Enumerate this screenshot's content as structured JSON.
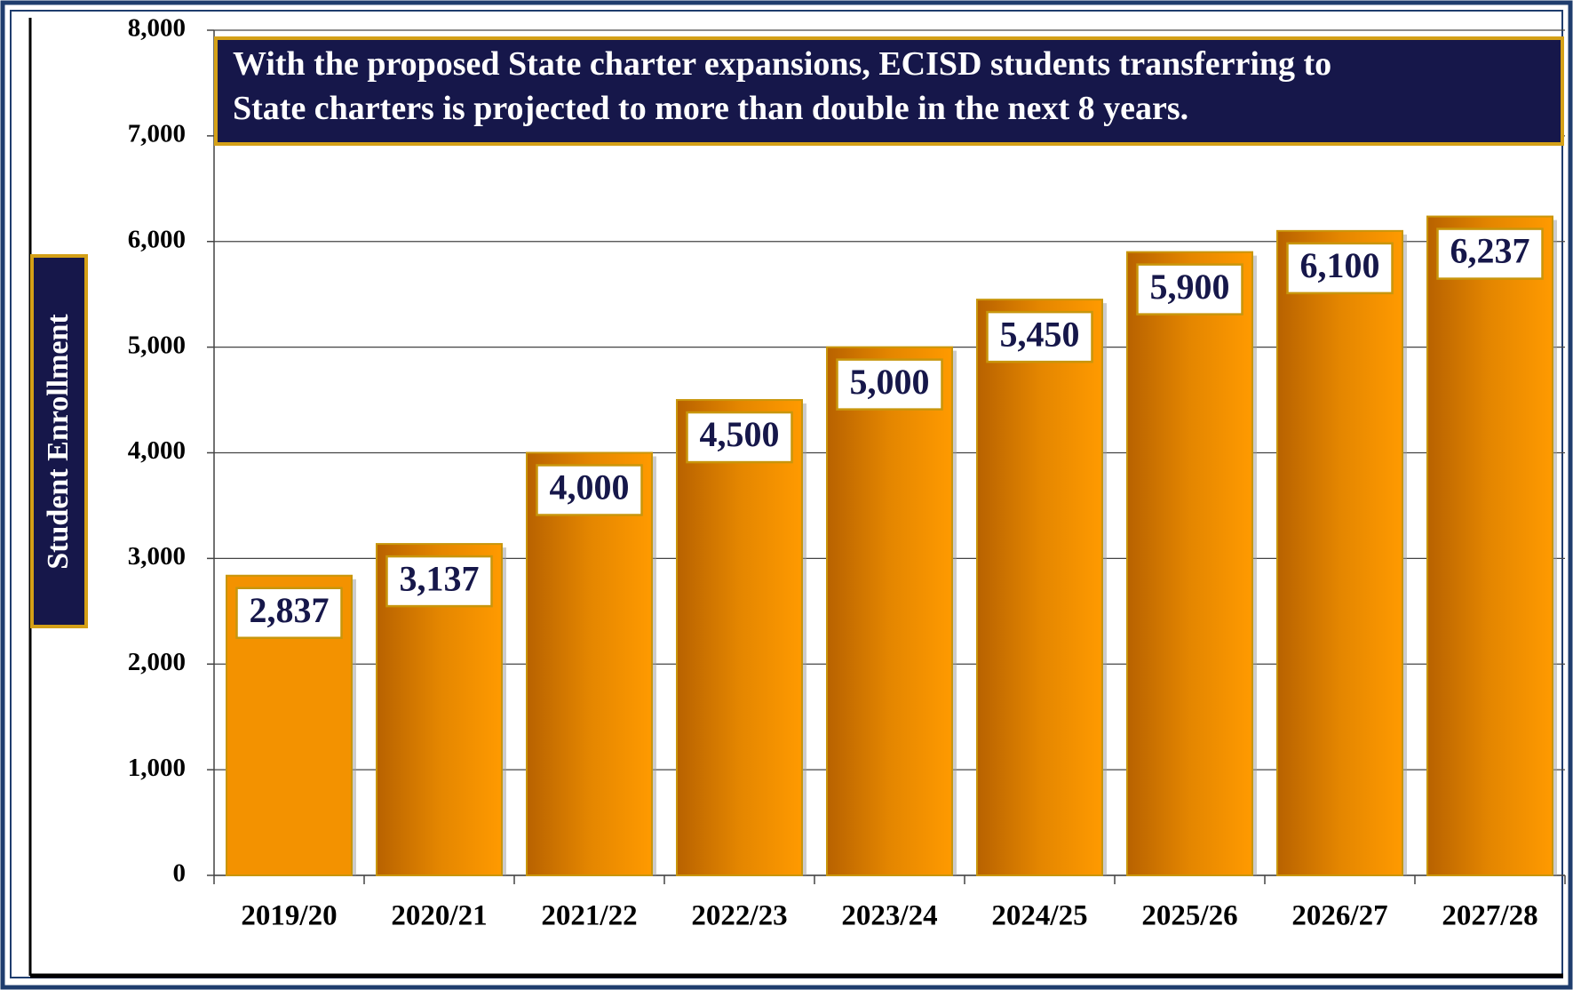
{
  "chart_data": {
    "type": "bar",
    "annotation": "With the proposed State charter expansions, ECISD students transferring to State charters is projected to more than double in the next 8 years.",
    "y_label": "Student Enrollment",
    "categories": [
      "2019/20",
      "2020/21",
      "2021/22",
      "2022/23",
      "2023/24",
      "2024/25",
      "2025/26",
      "2026/27",
      "2027/28"
    ],
    "values": [
      2837,
      3137,
      4000,
      4500,
      5000,
      5450,
      5900,
      6100,
      6237
    ],
    "value_labels": [
      "2,837",
      "3,137",
      "4,000",
      "4,500",
      "5,000",
      "5,450",
      "5,900",
      "6,100",
      "6,237"
    ],
    "color": "#f39200",
    "ylim": [
      0,
      8000
    ],
    "yticks": [
      0,
      {
        "value": 1000,
        "label": "1,000"
      },
      {
        "value": 2000,
        "label": "2,000"
      },
      {
        "value": 3000,
        "label": "3,000"
      },
      {
        "value": 4000,
        "label": "4,000"
      },
      {
        "value": 5000,
        "label": "5,000"
      },
      {
        "value": 6000,
        "label": "6,000"
      },
      {
        "value": 7000,
        "label": "7,000"
      },
      {
        "value": 8000,
        "label": "8,000"
      }
    ],
    "grid": true
  }
}
